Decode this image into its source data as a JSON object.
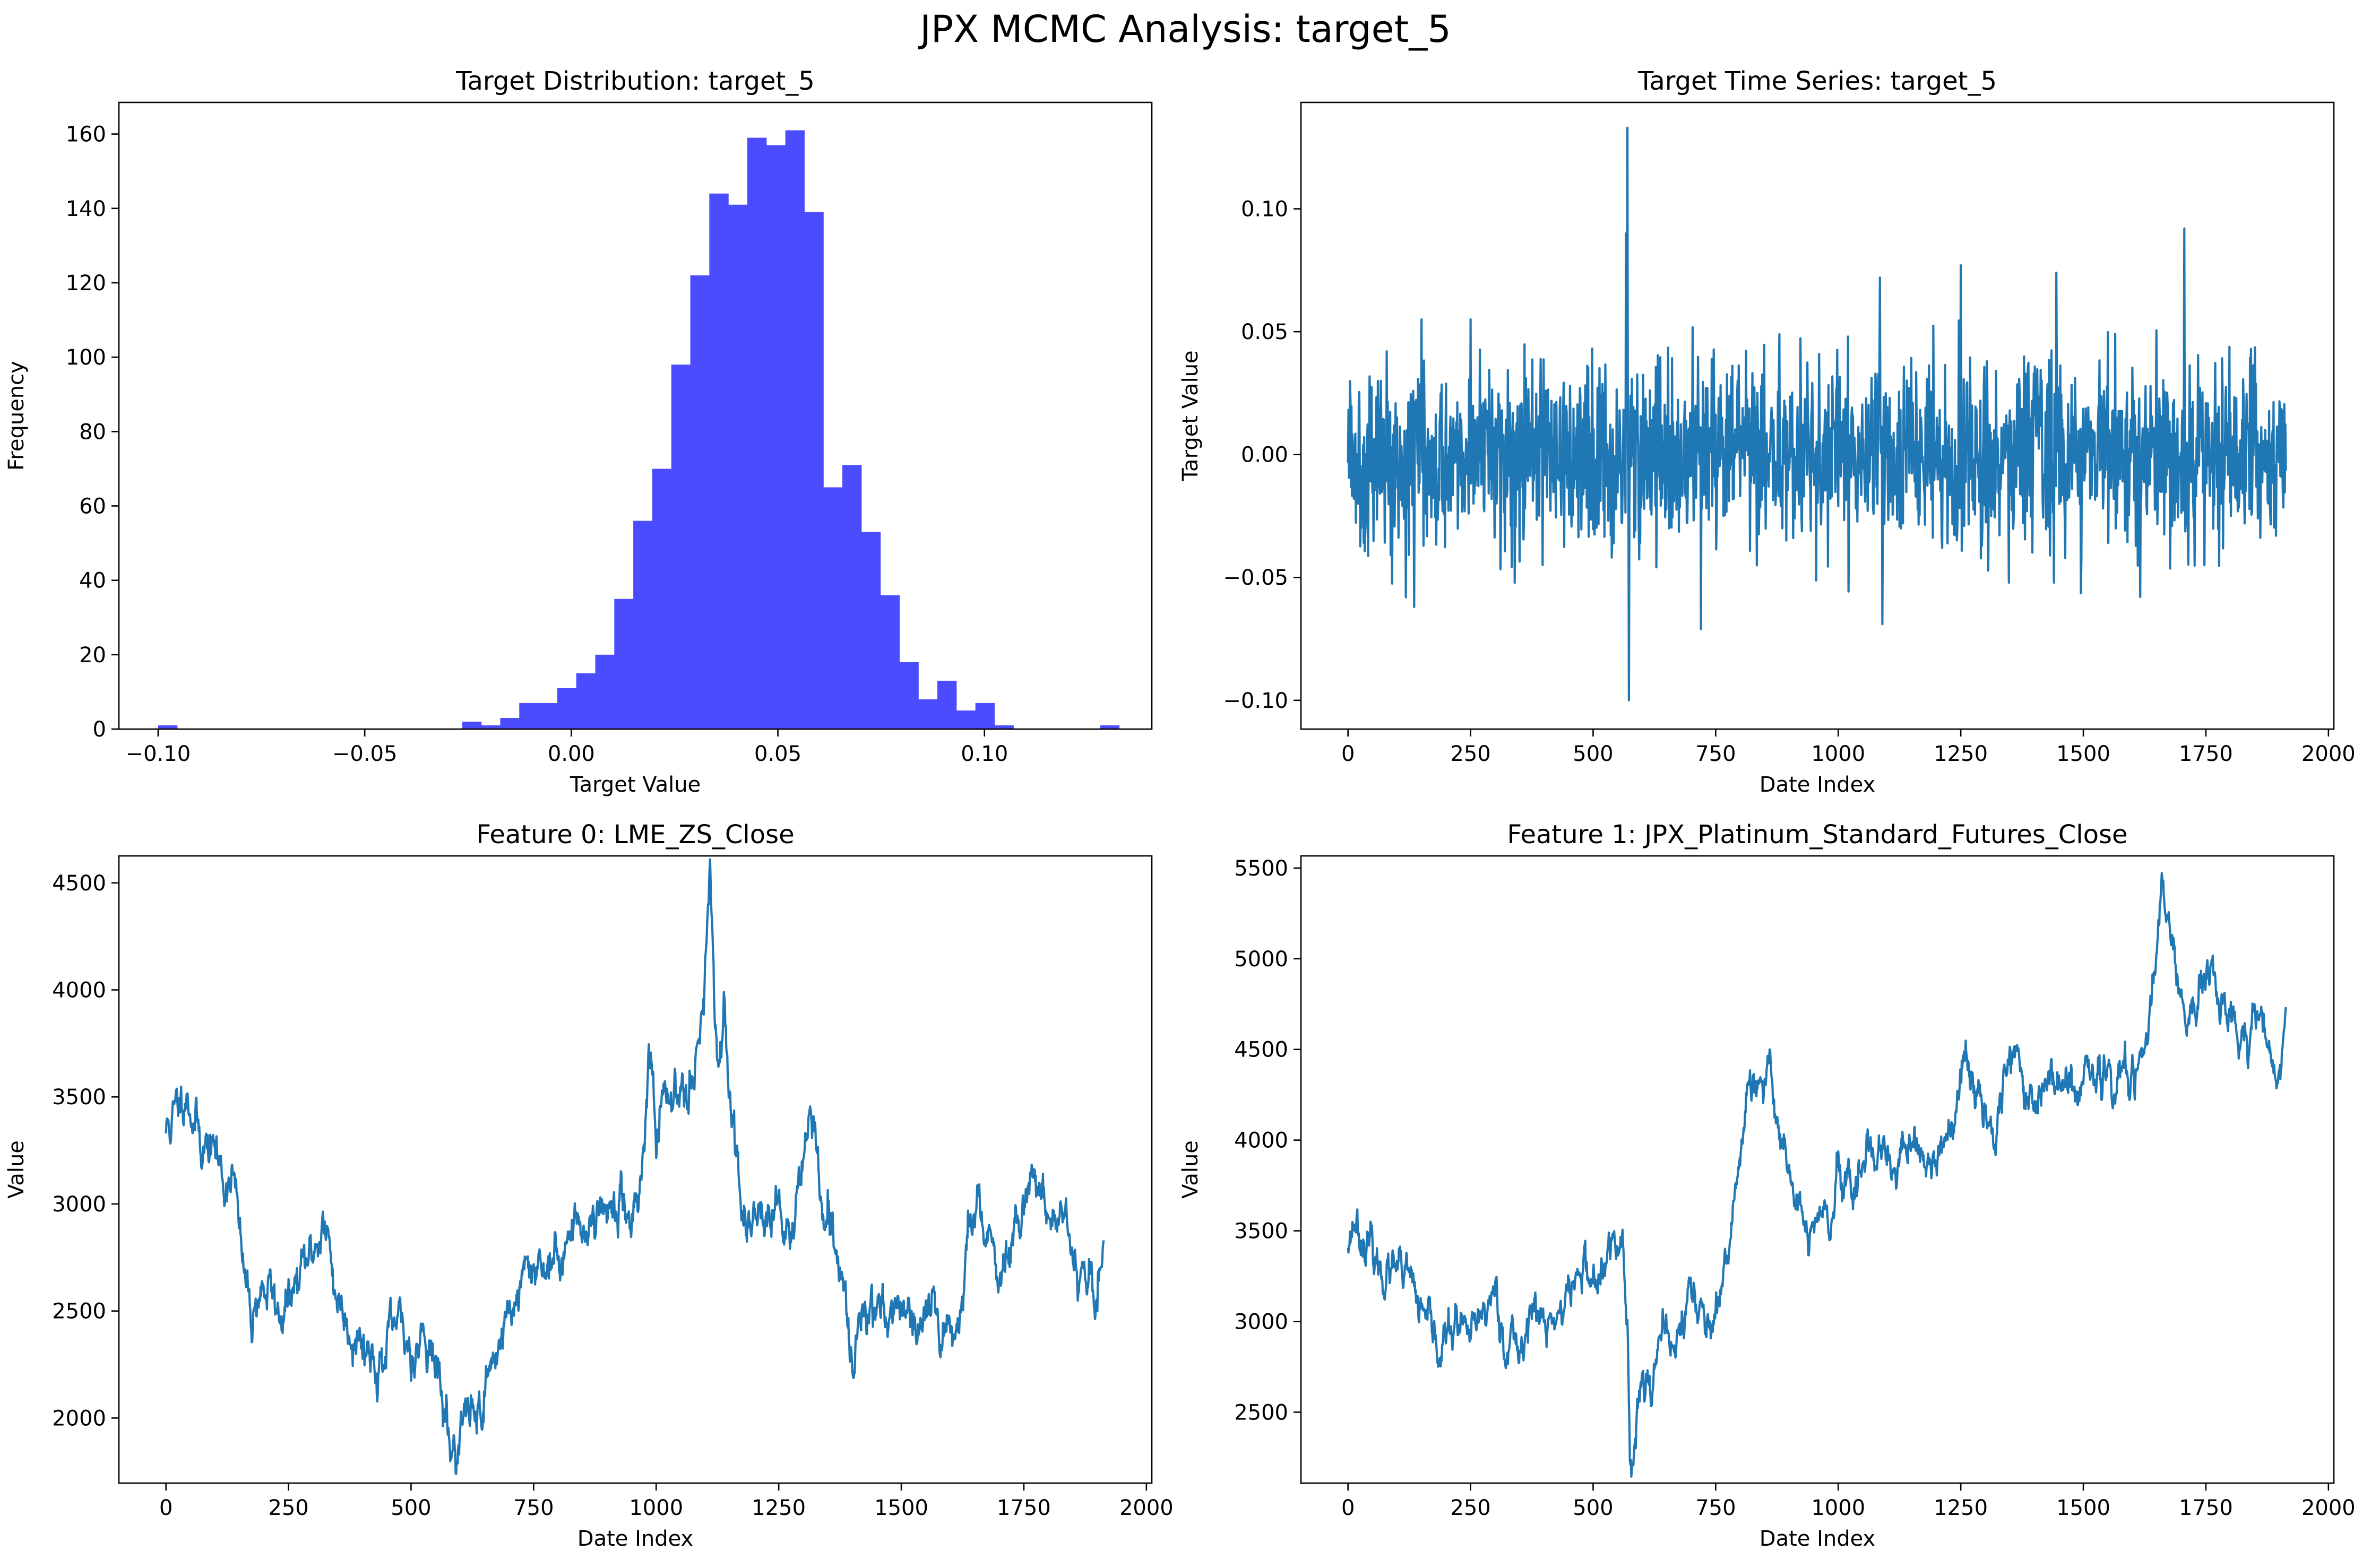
{
  "figure": {
    "title": "JPX MCMC Analysis: target_5"
  },
  "colors": {
    "line": "#1f77b4",
    "hist": "#4c4cff",
    "axis": "#000000"
  },
  "chart_data": [
    {
      "type": "bar",
      "title": "Target Distribution: target_5",
      "xlabel": "Target Value",
      "ylabel": "Frequency",
      "xlim": [
        -0.1095,
        0.1405
      ],
      "ylim": [
        0,
        168.5
      ],
      "xticks": [
        -0.1,
        -0.05,
        0.0,
        0.05,
        0.1
      ],
      "xtick_labels": [
        "−0.10",
        "−0.05",
        "0.00",
        "0.05",
        "0.10"
      ],
      "yticks": [
        0,
        20,
        40,
        60,
        80,
        100,
        120,
        140,
        160
      ],
      "ytick_labels": [
        "0",
        "20",
        "40",
        "60",
        "80",
        "100",
        "120",
        "140",
        "160"
      ],
      "bin_start": -0.1,
      "bin_width": 0.0046,
      "values": [
        1,
        0,
        0,
        0,
        0,
        0,
        0,
        0,
        0,
        0,
        0,
        0,
        0,
        0,
        0,
        0,
        2,
        1,
        3,
        7,
        7,
        11,
        15,
        20,
        35,
        56,
        70,
        98,
        122,
        144,
        141,
        159,
        157,
        161,
        139,
        65,
        71,
        53,
        36,
        18,
        8,
        13,
        5,
        7,
        1,
        0,
        0,
        0,
        0,
        0,
        0,
        0,
        0,
        0,
        0,
        0,
        0,
        0,
        0,
        0,
        0,
        0,
        0,
        0,
        0,
        0,
        0,
        0,
        0,
        0,
        0,
        0,
        0,
        0,
        0,
        0,
        0,
        1,
        0,
        0,
        0,
        0,
        0,
        0,
        0,
        0,
        0,
        0,
        0,
        0,
        0,
        0,
        0,
        0,
        0,
        0,
        0,
        0,
        0,
        0,
        0,
        0
      ],
      "extra_bars": [
        {
          "x": 0.057,
          "value": 1
        },
        {
          "x": 0.066,
          "value": 1
        },
        {
          "x": 0.071,
          "value": 1
        },
        {
          "x": 0.082,
          "value": 1
        },
        {
          "x": 0.087,
          "value": 1
        },
        {
          "x": 0.092,
          "value": 1
        },
        {
          "x": 0.128,
          "value": 1
        }
      ],
      "grid": false
    },
    {
      "type": "line",
      "title": "Target Time Series: target_5",
      "xlabel": "Date Index",
      "ylabel": "Target Value",
      "xlim": [
        -96,
        2011
      ],
      "ylim": [
        -0.1117,
        0.1433
      ],
      "xticks": [
        0,
        250,
        500,
        750,
        1000,
        1250,
        1500,
        1750,
        2000
      ],
      "yticks": [
        -0.1,
        -0.05,
        0.0,
        0.05,
        0.1
      ],
      "ytick_labels": [
        "−0.10",
        "−0.05",
        "0.00",
        "0.05",
        "0.10"
      ],
      "n_points": 1914,
      "x_range": [
        0,
        1913
      ],
      "noise_std": 0.018,
      "seed": 5,
      "spikes": [
        {
          "x": 567,
          "y": 0.09
        },
        {
          "x": 570,
          "y": 0.133
        },
        {
          "x": 573,
          "y": -0.1
        },
        {
          "x": 150,
          "y": 0.055
        },
        {
          "x": 250,
          "y": 0.055
        },
        {
          "x": 1085,
          "y": 0.072
        },
        {
          "x": 1090,
          "y": -0.069
        },
        {
          "x": 1250,
          "y": 0.077
        },
        {
          "x": 1445,
          "y": 0.074
        },
        {
          "x": 1706,
          "y": 0.092
        },
        {
          "x": 720,
          "y": -0.071
        },
        {
          "x": 135,
          "y": -0.062
        }
      ],
      "grid": false
    },
    {
      "type": "line",
      "title": "Feature 0: LME_ZS_Close",
      "xlabel": "Date Index",
      "ylabel": "Value",
      "xlim": [
        -96,
        2011
      ],
      "ylim": [
        1696,
        4626
      ],
      "xticks": [
        0,
        250,
        500,
        750,
        1000,
        1250,
        1500,
        1750,
        2000
      ],
      "yticks": [
        2000,
        2500,
        3000,
        3500,
        4000,
        4500
      ],
      "anchors": [
        [
          0,
          3340
        ],
        [
          20,
          3420
        ],
        [
          40,
          3560
        ],
        [
          55,
          3430
        ],
        [
          70,
          3300
        ],
        [
          100,
          3250
        ],
        [
          120,
          3080
        ],
        [
          135,
          3200
        ],
        [
          150,
          2850
        ],
        [
          160,
          2650
        ],
        [
          175,
          2480
        ],
        [
          190,
          2600
        ],
        [
          210,
          2600
        ],
        [
          230,
          2490
        ],
        [
          255,
          2550
        ],
        [
          280,
          2680
        ],
        [
          300,
          2780
        ],
        [
          320,
          2920
        ],
        [
          335,
          2750
        ],
        [
          350,
          2560
        ],
        [
          380,
          2430
        ],
        [
          410,
          2340
        ],
        [
          440,
          2250
        ],
        [
          470,
          2420
        ],
        [
          500,
          2320
        ],
        [
          530,
          2430
        ],
        [
          560,
          2150
        ],
        [
          583,
          1830
        ],
        [
          610,
          2000
        ],
        [
          640,
          2050
        ],
        [
          670,
          2300
        ],
        [
          700,
          2500
        ],
        [
          730,
          2630
        ],
        [
          760,
          2750
        ],
        [
          790,
          2700
        ],
        [
          820,
          2850
        ],
        [
          860,
          2920
        ],
        [
          900,
          3000
        ],
        [
          940,
          2950
        ],
        [
          970,
          3100
        ],
        [
          985,
          3750
        ],
        [
          1000,
          3300
        ],
        [
          1020,
          3450
        ],
        [
          1050,
          3560
        ],
        [
          1075,
          3650
        ],
        [
          1095,
          3900
        ],
        [
          1110,
          4480
        ],
        [
          1120,
          3700
        ],
        [
          1140,
          3800
        ],
        [
          1160,
          3350
        ],
        [
          1175,
          2900
        ],
        [
          1200,
          3000
        ],
        [
          1240,
          2950
        ],
        [
          1270,
          2850
        ],
        [
          1300,
          3200
        ],
        [
          1320,
          3450
        ],
        [
          1340,
          2900
        ],
        [
          1380,
          2650
        ],
        [
          1400,
          2280
        ],
        [
          1420,
          2500
        ],
        [
          1460,
          2550
        ],
        [
          1500,
          2500
        ],
        [
          1540,
          2400
        ],
        [
          1580,
          2450
        ],
        [
          1620,
          2480
        ],
        [
          1640,
          2900
        ],
        [
          1680,
          2920
        ],
        [
          1700,
          2680
        ],
        [
          1740,
          2880
        ],
        [
          1760,
          3150
        ],
        [
          1800,
          3050
        ],
        [
          1830,
          2850
        ],
        [
          1860,
          2780
        ],
        [
          1880,
          2650
        ],
        [
          1900,
          2600
        ],
        [
          1913,
          2700
        ]
      ],
      "noise_std": 38,
      "seed": 11,
      "grid": false
    },
    {
      "type": "line",
      "title": "Feature 1: JPX_Platinum_Standard_Futures_Close",
      "xlabel": "Date Index",
      "ylabel": "Value",
      "xlim": [
        -96,
        2011
      ],
      "ylim": [
        2109,
        5567
      ],
      "xticks": [
        0,
        250,
        500,
        750,
        1000,
        1250,
        1500,
        1750,
        2000
      ],
      "yticks": [
        2500,
        3000,
        3500,
        4000,
        4500,
        5000,
        5500
      ],
      "anchors": [
        [
          0,
          3450
        ],
        [
          15,
          3580
        ],
        [
          30,
          3480
        ],
        [
          60,
          3300
        ],
        [
          100,
          3250
        ],
        [
          130,
          3200
        ],
        [
          160,
          2950
        ],
        [
          190,
          2850
        ],
        [
          220,
          3000
        ],
        [
          250,
          2880
        ],
        [
          280,
          3050
        ],
        [
          300,
          3200
        ],
        [
          320,
          2900
        ],
        [
          350,
          2850
        ],
        [
          380,
          3100
        ],
        [
          400,
          2950
        ],
        [
          420,
          3000
        ],
        [
          450,
          3150
        ],
        [
          480,
          3300
        ],
        [
          510,
          3200
        ],
        [
          540,
          3400
        ],
        [
          560,
          3450
        ],
        [
          570,
          3000
        ],
        [
          575,
          2200
        ],
        [
          590,
          2550
        ],
        [
          610,
          2700
        ],
        [
          640,
          2850
        ],
        [
          680,
          2950
        ],
        [
          700,
          3200
        ],
        [
          720,
          3050
        ],
        [
          740,
          2950
        ],
        [
          760,
          3000
        ],
        [
          780,
          3500
        ],
        [
          800,
          3950
        ],
        [
          820,
          4300
        ],
        [
          840,
          4200
        ],
        [
          860,
          4350
        ],
        [
          880,
          4100
        ],
        [
          900,
          3850
        ],
        [
          920,
          3650
        ],
        [
          940,
          3400
        ],
        [
          960,
          3600
        ],
        [
          980,
          3500
        ],
        [
          1000,
          3750
        ],
        [
          1030,
          3700
        ],
        [
          1060,
          3800
        ],
        [
          1090,
          3900
        ],
        [
          1120,
          3800
        ],
        [
          1150,
          4000
        ],
        [
          1180,
          3850
        ],
        [
          1210,
          3950
        ],
        [
          1240,
          4100
        ],
        [
          1260,
          4400
        ],
        [
          1290,
          4250
        ],
        [
          1320,
          4100
        ],
        [
          1350,
          4500
        ],
        [
          1380,
          4350
        ],
        [
          1410,
          4200
        ],
        [
          1440,
          4350
        ],
        [
          1480,
          4250
        ],
        [
          1520,
          4350
        ],
        [
          1560,
          4300
        ],
        [
          1600,
          4350
        ],
        [
          1630,
          4500
        ],
        [
          1650,
          5000
        ],
        [
          1660,
          5350
        ],
        [
          1680,
          5100
        ],
        [
          1700,
          4900
        ],
        [
          1710,
          4650
        ],
        [
          1730,
          4700
        ],
        [
          1760,
          4950
        ],
        [
          1790,
          4700
        ],
        [
          1820,
          4600
        ],
        [
          1850,
          4700
        ],
        [
          1880,
          4500
        ],
        [
          1895,
          4350
        ],
        [
          1905,
          4500
        ],
        [
          1913,
          4750
        ]
      ],
      "noise_std": 40,
      "seed": 23,
      "grid": false
    }
  ]
}
